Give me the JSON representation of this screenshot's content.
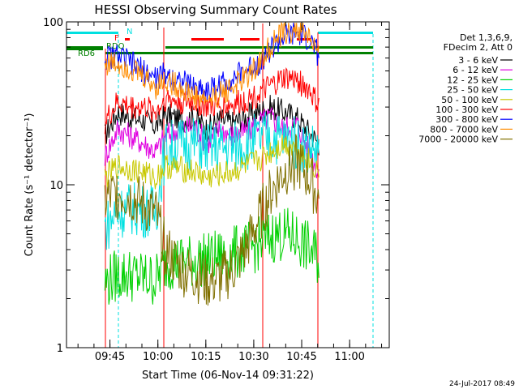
{
  "chart_data": {
    "type": "line",
    "title": "HESSI Observing Summary Count Rates",
    "xlabel": "Start Time (06-Nov-14 09:31:22)",
    "ylabel": "Count Rate (s⁻¹ detector⁻¹)",
    "x_axis_start": "09:31:22",
    "xlim_minutes_after_start": [
      0,
      101
    ],
    "x_ticks": [
      {
        "label": "09:45",
        "minute": 13.6
      },
      {
        "label": "10:00",
        "minute": 28.6
      },
      {
        "label": "10:15",
        "minute": 43.6
      },
      {
        "label": "10:30",
        "minute": 58.6
      },
      {
        "label": "10:45",
        "minute": 73.6
      },
      {
        "label": "11:00",
        "minute": 88.6
      }
    ],
    "y_scale": "log",
    "ylim": [
      1,
      100
    ],
    "y_ticks": [
      "1",
      "10",
      "100"
    ],
    "legend": {
      "position": "right",
      "header": [
        "Det 1,3,6,9,",
        "FDecim 2, Att 0"
      ]
    },
    "series": [
      {
        "name": "3 - 6 keV",
        "color": "#000000",
        "x": [
          12,
          16,
          20,
          24,
          28,
          31,
          36,
          40,
          44,
          48,
          52,
          56,
          60,
          64,
          68,
          72,
          76,
          79
        ],
        "y": [
          20,
          28,
          26,
          25,
          23,
          27,
          25,
          26,
          22,
          25,
          24,
          26,
          28,
          30,
          28,
          26,
          21,
          18
        ]
      },
      {
        "name": "6 - 12 keV",
        "color": "#e000e0",
        "x": [
          12,
          16,
          20,
          24,
          28,
          31,
          36,
          40,
          44,
          48,
          52,
          56,
          60,
          64,
          68,
          72,
          76,
          79
        ],
        "y": [
          15,
          22,
          20,
          18,
          16,
          20,
          22,
          23,
          18,
          22,
          20,
          21,
          24,
          26,
          22,
          24,
          16,
          12
        ]
      },
      {
        "name": "12 - 25 keV",
        "color": "#00d000",
        "x": [
          12,
          16,
          20,
          24,
          28,
          31,
          36,
          40,
          44,
          48,
          52,
          56,
          60,
          64,
          68,
          72,
          76,
          79
        ],
        "y": [
          2.5,
          2.8,
          2.8,
          2.7,
          2.6,
          3.3,
          3.4,
          3.4,
          3.5,
          3.6,
          3.8,
          4.0,
          4.3,
          4.8,
          5.0,
          4.7,
          4.0,
          3.5
        ]
      },
      {
        "name": "25 - 50 keV",
        "color": "#00e0e0",
        "x": [
          12,
          16,
          20,
          24,
          28,
          31,
          36,
          40,
          44,
          48,
          52,
          56,
          60,
          64,
          68,
          72,
          76,
          79
        ],
        "y": [
          5.5,
          6.8,
          7.2,
          7.0,
          6.8,
          17,
          18,
          18,
          17,
          17,
          17,
          18,
          19,
          20,
          19,
          18,
          17,
          16
        ]
      },
      {
        "name": "50 - 100 keV",
        "color": "#c8c800",
        "x": [
          12,
          16,
          20,
          24,
          28,
          31,
          36,
          40,
          44,
          48,
          52,
          56,
          60,
          64,
          68,
          72,
          76,
          79
        ],
        "y": [
          11,
          13,
          12.5,
          12,
          11,
          13,
          12.5,
          12,
          11,
          11.5,
          12,
          13,
          14,
          16,
          18,
          17,
          14,
          12
        ]
      },
      {
        "name": "100 - 300 keV",
        "color": "#ff0000",
        "x": [
          12,
          16,
          20,
          24,
          28,
          31,
          36,
          40,
          44,
          48,
          52,
          56,
          60,
          64,
          68,
          72,
          76,
          79
        ],
        "y": [
          24,
          32,
          30,
          30,
          28,
          34,
          32,
          32,
          30,
          30,
          31,
          33,
          36,
          40,
          45,
          44,
          38,
          30
        ]
      },
      {
        "name": "300 - 800 keV",
        "color": "#0000ff",
        "x": [
          12,
          16,
          20,
          24,
          28,
          31,
          36,
          40,
          44,
          48,
          52,
          56,
          60,
          64,
          68,
          72,
          76,
          79
        ],
        "y": [
          60,
          62,
          56,
          50,
          45,
          48,
          43,
          40,
          38,
          41,
          45,
          50,
          56,
          68,
          80,
          84,
          78,
          62
        ]
      },
      {
        "name": "800 - 7000 keV",
        "color": "#ff8c00",
        "x": [
          12,
          16,
          20,
          24,
          28,
          31,
          36,
          40,
          44,
          48,
          52,
          56,
          60,
          64,
          68,
          72,
          76,
          79
        ],
        "y": [
          55,
          56,
          52,
          46,
          40,
          44,
          39,
          35,
          33,
          36,
          40,
          45,
          55,
          72,
          85,
          90,
          82,
          60
        ]
      },
      {
        "name": "7000 - 20000 keV",
        "color": "#807000",
        "x": [
          12,
          16,
          20,
          24,
          28,
          31,
          36,
          40,
          44,
          48,
          52,
          56,
          60,
          64,
          68,
          72,
          76,
          79
        ],
        "y": [
          8,
          9,
          8.5,
          7.5,
          6.5,
          4.0,
          3.0,
          2.8,
          2.5,
          2.6,
          3.0,
          4.0,
          6.0,
          9.0,
          12,
          14,
          11,
          8
        ]
      }
    ],
    "flag_labels": [
      {
        "text": "N",
        "color": "#00e0e0"
      },
      {
        "text": "F",
        "color": "#ff0000"
      },
      {
        "text": "RDO",
        "color": "#008000"
      },
      {
        "text": "RD6",
        "color": "#008000"
      }
    ],
    "footer_timestamp": "24-Jul-2017 08:49"
  },
  "colors": {
    "cyan_flag": "#00e0e0",
    "green_flag": "#008000",
    "red_flag": "#ff0000",
    "frame": "#000000"
  }
}
